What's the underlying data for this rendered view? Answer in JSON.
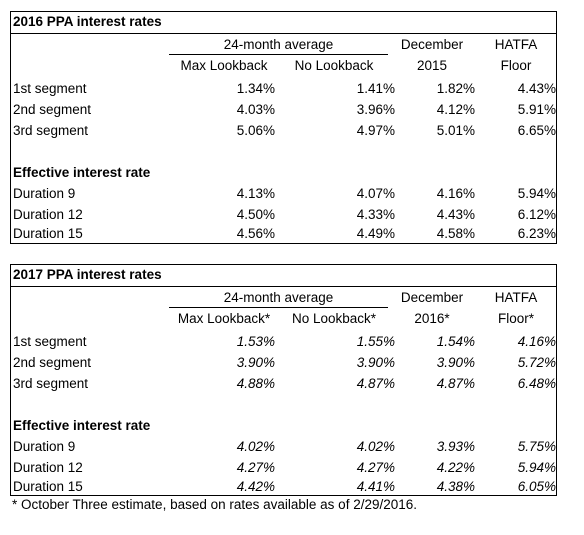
{
  "tables": [
    {
      "title": "2016 PPA interest rates",
      "group_header": "24-month average",
      "col_headers_top": [
        "",
        "",
        "December",
        "HATFA"
      ],
      "col_headers": [
        "Max Lookback",
        "No Lookback",
        "2015",
        "Floor"
      ],
      "rows": [
        {
          "label": "1st segment",
          "values": [
            "1.34%",
            "1.41%",
            "1.82%",
            "4.43%"
          ]
        },
        {
          "label": "2nd segment",
          "values": [
            "4.03%",
            "3.96%",
            "4.12%",
            "5.91%"
          ]
        },
        {
          "label": "3rd segment",
          "values": [
            "5.06%",
            "4.97%",
            "5.01%",
            "6.65%"
          ]
        }
      ],
      "section_title": "Effective interest rate",
      "section_rows": [
        {
          "label": "Duration 9",
          "values": [
            "4.13%",
            "4.07%",
            "4.16%",
            "5.94%"
          ]
        },
        {
          "label": "Duration 12",
          "values": [
            "4.50%",
            "4.33%",
            "4.43%",
            "6.12%"
          ]
        },
        {
          "label": "Duration 15",
          "values": [
            "4.56%",
            "4.49%",
            "4.58%",
            "6.23%"
          ]
        }
      ]
    },
    {
      "title": "2017 PPA interest rates",
      "group_header": "24-month average",
      "col_headers_top": [
        "",
        "",
        "December",
        "HATFA"
      ],
      "col_headers": [
        "Max Lookback*",
        "No Lookback*",
        "2016*",
        "Floor*"
      ],
      "rows": [
        {
          "label": "1st segment",
          "values": [
            "1.53%",
            "1.55%",
            "1.54%",
            "4.16%"
          ]
        },
        {
          "label": "2nd segment",
          "values": [
            "3.90%",
            "3.90%",
            "3.90%",
            "5.72%"
          ]
        },
        {
          "label": "3rd segment",
          "values": [
            "4.88%",
            "4.87%",
            "4.87%",
            "6.48%"
          ]
        }
      ],
      "section_title": "Effective interest rate",
      "section_rows": [
        {
          "label": "Duration 9",
          "values": [
            "4.02%",
            "4.02%",
            "3.93%",
            "5.75%"
          ]
        },
        {
          "label": "Duration 12",
          "values": [
            "4.27%",
            "4.27%",
            "4.22%",
            "5.94%"
          ]
        },
        {
          "label": "Duration 15",
          "values": [
            "4.42%",
            "4.41%",
            "4.38%",
            "6.05%"
          ]
        }
      ]
    }
  ],
  "footnote": "* October Three estimate, based on rates available as of 2/29/2016."
}
